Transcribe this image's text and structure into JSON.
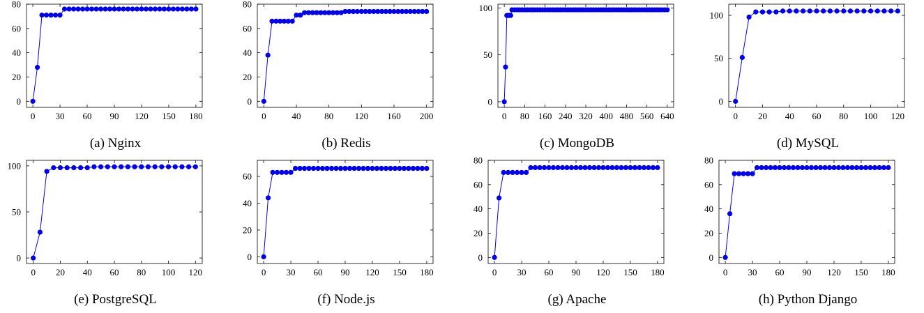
{
  "colors": {
    "series": "#0000ee",
    "axis": "#000000"
  },
  "chart_data": [
    {
      "type": "line",
      "caption": "(a) Nginx",
      "xlim": [
        -7,
        187
      ],
      "ylim": [
        -5,
        80
      ],
      "xticks": [
        0,
        30,
        60,
        90,
        120,
        150,
        180
      ],
      "yticks": [
        0,
        20,
        40,
        60,
        80
      ],
      "x": [
        0,
        5,
        10,
        15,
        20,
        25,
        30,
        35,
        40,
        45,
        50,
        55,
        60,
        65,
        70,
        75,
        80,
        85,
        90,
        95,
        100,
        105,
        110,
        115,
        120,
        125,
        130,
        135,
        140,
        145,
        150,
        155,
        160,
        165,
        170,
        175,
        180
      ],
      "y": [
        0,
        28,
        71,
        71,
        71,
        71,
        71,
        76,
        76,
        76,
        76,
        76,
        76,
        76,
        76,
        76,
        76,
        76,
        76,
        76,
        76,
        76,
        76,
        76,
        76,
        76,
        76,
        76,
        76,
        76,
        76,
        76,
        76,
        76,
        76,
        76,
        76
      ]
    },
    {
      "type": "line",
      "caption": "(b) Redis",
      "xlim": [
        -8,
        208
      ],
      "ylim": [
        -5,
        80
      ],
      "xticks": [
        0,
        40,
        80,
        120,
        160,
        200
      ],
      "yticks": [
        0,
        20,
        40,
        60,
        80
      ],
      "x": [
        0,
        5,
        10,
        15,
        20,
        25,
        30,
        35,
        40,
        45,
        50,
        55,
        60,
        65,
        70,
        75,
        80,
        85,
        90,
        95,
        100,
        105,
        110,
        115,
        120,
        125,
        130,
        135,
        140,
        145,
        150,
        155,
        160,
        165,
        170,
        175,
        180,
        185,
        190,
        195,
        200
      ],
      "y": [
        0,
        38,
        66,
        66,
        66,
        66,
        66,
        66,
        71,
        71,
        73,
        73,
        73,
        73,
        73,
        73,
        73,
        73,
        73,
        73,
        74,
        74,
        74,
        74,
        74,
        74,
        74,
        74,
        74,
        74,
        74,
        74,
        74,
        74,
        74,
        74,
        74,
        74,
        74,
        74,
        74
      ]
    },
    {
      "type": "line",
      "caption": "(c) MongoDB",
      "xlim": [
        -25,
        665
      ],
      "ylim": [
        -6,
        104
      ],
      "xticks": [
        0,
        80,
        160,
        240,
        320,
        400,
        480,
        560,
        640
      ],
      "yticks": [
        0,
        50,
        100
      ],
      "x": [
        0,
        5,
        10,
        15,
        20,
        25,
        30,
        40,
        50,
        60,
        70,
        80,
        90,
        100,
        110,
        120,
        130,
        140,
        150,
        160,
        170,
        180,
        190,
        200,
        210,
        220,
        230,
        240,
        250,
        260,
        270,
        280,
        290,
        300,
        310,
        320,
        330,
        340,
        350,
        360,
        370,
        380,
        390,
        400,
        410,
        420,
        430,
        440,
        450,
        460,
        470,
        480,
        490,
        500,
        510,
        520,
        530,
        540,
        550,
        560,
        570,
        580,
        590,
        600,
        610,
        620,
        630,
        640
      ],
      "y": [
        0,
        37,
        92,
        92,
        92,
        92,
        98,
        98,
        98,
        98,
        98,
        98,
        98,
        98,
        98,
        98,
        98,
        98,
        98,
        98,
        98,
        98,
        98,
        98,
        98,
        98,
        98,
        98,
        98,
        98,
        98,
        98,
        98,
        98,
        98,
        98,
        98,
        98,
        98,
        98,
        98,
        98,
        98,
        98,
        98,
        98,
        98,
        98,
        98,
        98,
        98,
        98,
        98,
        98,
        98,
        98,
        98,
        98,
        98,
        98,
        98,
        98,
        98,
        98,
        98,
        98,
        98,
        98
      ]
    },
    {
      "type": "line",
      "caption": "(d) MySQL",
      "xlim": [
        -5,
        125
      ],
      "ylim": [
        -7,
        113
      ],
      "xticks": [
        0,
        20,
        40,
        60,
        80,
        100,
        120
      ],
      "yticks": [
        0,
        50,
        100
      ],
      "x": [
        0,
        5,
        10,
        15,
        20,
        25,
        30,
        35,
        40,
        45,
        50,
        55,
        60,
        65,
        70,
        75,
        80,
        85,
        90,
        95,
        100,
        105,
        110,
        115,
        120
      ],
      "y": [
        0,
        51,
        98,
        104,
        104,
        104,
        104,
        105,
        105,
        105,
        105,
        105,
        105,
        105,
        105,
        105,
        105,
        105,
        105,
        105,
        105,
        105,
        105,
        105,
        105
      ]
    },
    {
      "type": "line",
      "caption": "(e) PostgreSQL",
      "xlim": [
        -5,
        125
      ],
      "ylim": [
        -6,
        106
      ],
      "xticks": [
        0,
        20,
        40,
        60,
        80,
        100,
        120
      ],
      "yticks": [
        0,
        50,
        100
      ],
      "x": [
        0,
        5,
        10,
        15,
        20,
        25,
        30,
        35,
        40,
        45,
        50,
        55,
        60,
        65,
        70,
        75,
        80,
        85,
        90,
        95,
        100,
        105,
        110,
        115,
        120
      ],
      "y": [
        0,
        28,
        94,
        98,
        98,
        98,
        98,
        98,
        98,
        99,
        99,
        99,
        99,
        99,
        99,
        99,
        99,
        99,
        99,
        99,
        99,
        99,
        99,
        99,
        99
      ]
    },
    {
      "type": "line",
      "caption": "(f) Node.js",
      "xlim": [
        -7,
        187
      ],
      "ylim": [
        -5,
        72
      ],
      "xticks": [
        0,
        30,
        60,
        90,
        120,
        150,
        180
      ],
      "yticks": [
        0,
        20,
        40,
        60
      ],
      "x": [
        0,
        5,
        10,
        15,
        20,
        25,
        30,
        35,
        40,
        45,
        50,
        55,
        60,
        65,
        70,
        75,
        80,
        85,
        90,
        95,
        100,
        105,
        110,
        115,
        120,
        125,
        130,
        135,
        140,
        145,
        150,
        155,
        160,
        165,
        170,
        175,
        180
      ],
      "y": [
        0,
        44,
        63,
        63,
        63,
        63,
        63,
        66,
        66,
        66,
        66,
        66,
        66,
        66,
        66,
        66,
        66,
        66,
        66,
        66,
        66,
        66,
        66,
        66,
        66,
        66,
        66,
        66,
        66,
        66,
        66,
        66,
        66,
        66,
        66,
        66,
        66
      ]
    },
    {
      "type": "line",
      "caption": "(g) Apache",
      "xlim": [
        -7,
        187
      ],
      "ylim": [
        -5,
        80
      ],
      "xticks": [
        0,
        30,
        60,
        90,
        120,
        150,
        180
      ],
      "yticks": [
        0,
        20,
        40,
        60,
        80
      ],
      "x": [
        0,
        5,
        10,
        15,
        20,
        25,
        30,
        35,
        40,
        45,
        50,
        55,
        60,
        65,
        70,
        75,
        80,
        85,
        90,
        95,
        100,
        105,
        110,
        115,
        120,
        125,
        130,
        135,
        140,
        145,
        150,
        155,
        160,
        165,
        170,
        175,
        180
      ],
      "y": [
        0,
        49,
        70,
        70,
        70,
        70,
        70,
        70,
        74,
        74,
        74,
        74,
        74,
        74,
        74,
        74,
        74,
        74,
        74,
        74,
        74,
        74,
        74,
        74,
        74,
        74,
        74,
        74,
        74,
        74,
        74,
        74,
        74,
        74,
        74,
        74,
        74
      ]
    },
    {
      "type": "line",
      "caption": "(h) Python Django",
      "xlim": [
        -7,
        187
      ],
      "ylim": [
        -5,
        80
      ],
      "xticks": [
        0,
        30,
        60,
        90,
        120,
        150,
        180
      ],
      "yticks": [
        0,
        20,
        40,
        60,
        80
      ],
      "x": [
        0,
        5,
        10,
        15,
        20,
        25,
        30,
        35,
        40,
        45,
        50,
        55,
        60,
        65,
        70,
        75,
        80,
        85,
        90,
        95,
        100,
        105,
        110,
        115,
        120,
        125,
        130,
        135,
        140,
        145,
        150,
        155,
        160,
        165,
        170,
        175,
        180
      ],
      "y": [
        0,
        36,
        69,
        69,
        69,
        69,
        69,
        74,
        74,
        74,
        74,
        74,
        74,
        74,
        74,
        74,
        74,
        74,
        74,
        74,
        74,
        74,
        74,
        74,
        74,
        74,
        74,
        74,
        74,
        74,
        74,
        74,
        74,
        74,
        74,
        74,
        74
      ]
    }
  ]
}
